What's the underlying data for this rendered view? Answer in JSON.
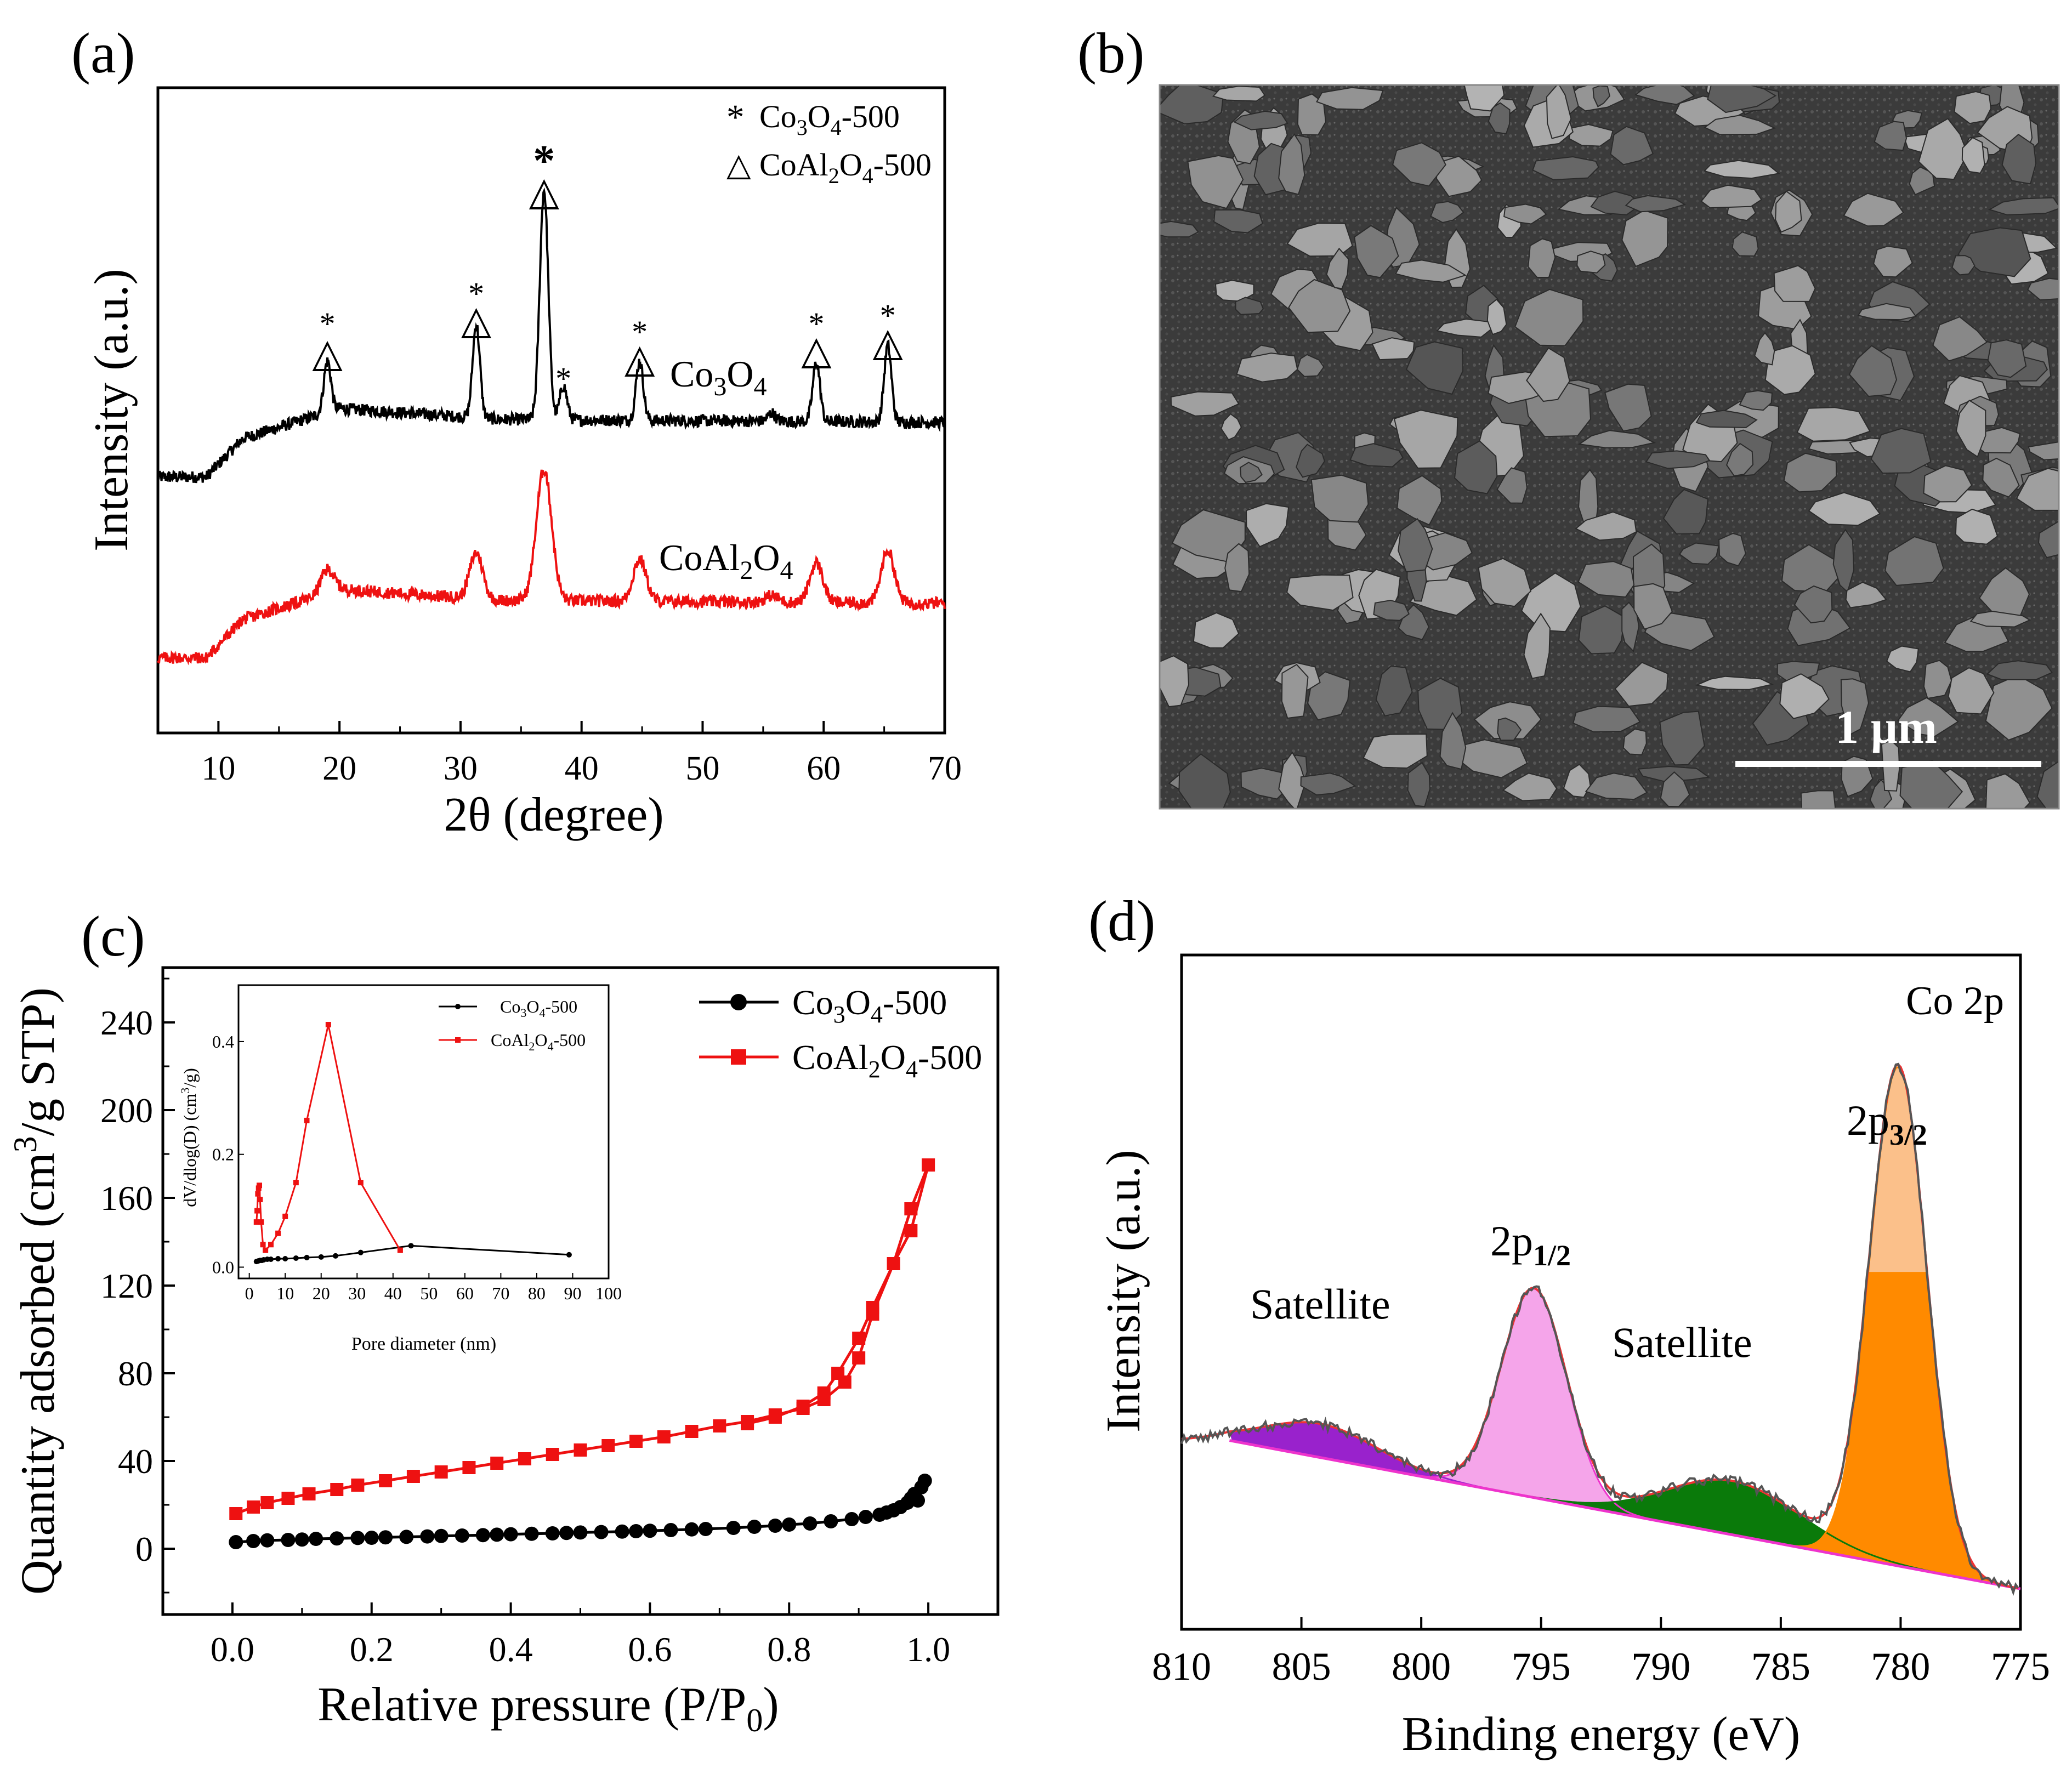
{
  "panels": {
    "a": "(a)",
    "b": "(b)",
    "c": "(c)",
    "d": "(d)"
  },
  "sem": {
    "scale_bar_label": "1 µm"
  },
  "colors": {
    "black_series": "#000000",
    "red_series": "#ee1111",
    "magenta": "#ee33cc",
    "purple": "#9922cc",
    "green": "#0a7a0a",
    "orange": "#ff8a00",
    "peach": "#fbc08a",
    "grey": "#555555"
  },
  "chart_data": [
    {
      "id": "a",
      "type": "line",
      "title": "",
      "xlabel": "2θ (degree)",
      "ylabel": "Intensity (a.u.)",
      "xlim": [
        5,
        70
      ],
      "x_ticks": [
        10,
        20,
        30,
        40,
        50,
        60,
        70
      ],
      "legend": [
        {
          "marker": "*",
          "text": "Co3O4-500"
        },
        {
          "marker": "△",
          "text": "CoAl2O4-500"
        }
      ],
      "series": [
        {
          "name": "Co3O4",
          "color": "#000000",
          "peaks_2theta": [
            19.0,
            31.3,
            36.9,
            38.5,
            44.8,
            55.7,
            59.4,
            65.3
          ]
        },
        {
          "name": "CoAl2O4",
          "color": "#ee1111",
          "peaks_2theta": [
            19.0,
            31.3,
            36.9,
            44.8,
            55.7,
            59.4,
            65.3
          ]
        }
      ],
      "annotations": [
        {
          "x": 19.0,
          "marks": [
            "*",
            "△"
          ]
        },
        {
          "x": 31.3,
          "marks": [
            "*",
            "△"
          ]
        },
        {
          "x": 36.9,
          "marks": [
            "*",
            "△"
          ]
        },
        {
          "x": 38.5,
          "marks": [
            "*"
          ]
        },
        {
          "x": 44.8,
          "marks": [
            "*",
            "△"
          ]
        },
        {
          "x": 59.4,
          "marks": [
            "*",
            "△"
          ]
        },
        {
          "x": 65.3,
          "marks": [
            "*",
            "△"
          ]
        }
      ]
    },
    {
      "id": "c",
      "type": "line",
      "title": "",
      "xlabel": "Relative pressure (P/P0)",
      "ylabel": "Quantity adsorbed (cm3/g STP)",
      "xlim": [
        -0.1,
        1.1
      ],
      "ylim": [
        -30,
        265
      ],
      "x_ticks": [
        0.0,
        0.2,
        0.4,
        0.6,
        0.8,
        1.0
      ],
      "y_ticks": [
        0,
        40,
        80,
        120,
        160,
        200,
        240
      ],
      "legend": [
        "Co3O4-500",
        "CoAl2O4-500"
      ],
      "series": [
        {
          "name": "Co3O4-500",
          "color": "#000000",
          "marker": "circle",
          "x": [
            0.005,
            0.03,
            0.05,
            0.08,
            0.1,
            0.12,
            0.15,
            0.18,
            0.2,
            0.22,
            0.25,
            0.28,
            0.3,
            0.33,
            0.36,
            0.38,
            0.4,
            0.43,
            0.46,
            0.48,
            0.5,
            0.53,
            0.56,
            0.58,
            0.6,
            0.63,
            0.66,
            0.68,
            0.72,
            0.75,
            0.78,
            0.8,
            0.83,
            0.86,
            0.89,
            0.91,
            0.93,
            0.94,
            0.95,
            0.96,
            0.97,
            0.975,
            0.98,
            0.985,
            0.99,
            0.995
          ],
          "y": [
            3,
            3.5,
            3.8,
            4,
            4.2,
            4.5,
            4.7,
            4.9,
            5,
            5.2,
            5.4,
            5.6,
            5.8,
            6,
            6.2,
            6.4,
            6.6,
            6.8,
            7,
            7.2,
            7.4,
            7.6,
            7.8,
            8,
            8.2,
            8.5,
            8.8,
            9,
            9.5,
            10,
            10.5,
            11,
            11.5,
            12.5,
            13.5,
            14.5,
            15.5,
            16.5,
            17.5,
            19,
            21,
            23,
            25,
            22,
            28,
            31
          ]
        },
        {
          "name": "CoAl2O4-500 adsorption",
          "color": "#ee1111",
          "marker": "square",
          "x": [
            0.005,
            0.03,
            0.05,
            0.08,
            0.11,
            0.15,
            0.18,
            0.22,
            0.26,
            0.3,
            0.34,
            0.38,
            0.42,
            0.46,
            0.5,
            0.54,
            0.58,
            0.62,
            0.66,
            0.7,
            0.74,
            0.78,
            0.82,
            0.85,
            0.88,
            0.9,
            0.92,
            0.95,
            0.975,
            1.0
          ],
          "y": [
            16,
            19,
            21,
            23,
            25,
            27,
            29,
            31,
            33,
            35,
            37,
            39,
            41,
            43,
            45,
            47,
            49,
            51,
            53.5,
            56,
            58,
            61,
            64,
            68,
            76,
            87,
            107,
            130,
            155,
            175
          ]
        },
        {
          "name": "CoAl2O4-500 desorption",
          "color": "#ee1111",
          "marker": "square",
          "x": [
            1.0,
            0.975,
            0.95,
            0.92,
            0.9,
            0.87,
            0.85,
            0.82,
            0.78,
            0.74
          ],
          "y": [
            175,
            145,
            130,
            110,
            96,
            80,
            71,
            65,
            60,
            57
          ]
        }
      ],
      "inset": {
        "type": "line",
        "xlabel": "Pore diameter (nm)",
        "ylabel": "dV/dlog(D) (cm3/g)",
        "xlim": [
          -3,
          100
        ],
        "ylim": [
          -0.02,
          0.5
        ],
        "x_ticks": [
          0,
          10,
          20,
          30,
          40,
          50,
          60,
          70,
          80,
          90,
          100
        ],
        "y_ticks": [
          0.0,
          0.2,
          0.4
        ],
        "legend": [
          "Co3O4-500",
          "CoAl2O4-500"
        ],
        "series": [
          {
            "name": "Co3O4-500",
            "color": "#000000",
            "x": [
              2,
              2.5,
              3,
              3.5,
              4,
              5,
              6,
              8,
              10,
              13,
              16,
              20,
              24,
              31,
              45,
              89
            ],
            "y": [
              0.01,
              0.011,
              0.012,
              0.012,
              0.013,
              0.014,
              0.014,
              0.015,
              0.015,
              0.016,
              0.017,
              0.018,
              0.02,
              0.026,
              0.038,
              0.022
            ]
          },
          {
            "name": "CoAl2O4-500",
            "color": "#ee1111",
            "x": [
              2.0,
              2.2,
              2.4,
              2.6,
              2.8,
              3.0,
              3.3,
              3.8,
              4.5,
              6,
              8,
              10,
              13,
              16,
              22,
              31,
              42
            ],
            "y": [
              0.08,
              0.1,
              0.13,
              0.14,
              0.145,
              0.12,
              0.08,
              0.04,
              0.03,
              0.04,
              0.06,
              0.09,
              0.15,
              0.26,
              0.43,
              0.15,
              0.03
            ]
          }
        ]
      }
    },
    {
      "id": "d",
      "type": "line",
      "title": "Co 2p",
      "xlabel": "Binding energy (eV)",
      "ylabel": "Intensity (a.u.)",
      "xlim": [
        810,
        775
      ],
      "x_ticks": [
        810,
        805,
        800,
        795,
        790,
        785,
        780,
        775
      ],
      "annotations": [
        "Satellite",
        "2p1/2",
        "Satellite",
        "2p3/2"
      ],
      "baseline": {
        "x": [
          808,
          775
        ],
        "y": [
          0.28,
          0.06
        ]
      },
      "components": [
        {
          "name": "Satellite (~804 eV)",
          "color": "#9922cc",
          "center": 804.2,
          "height": 0.05,
          "fwhm": 5.5
        },
        {
          "name": "2p1/2",
          "color": "#ee33cc",
          "center": 795.3,
          "height": 0.31,
          "fwhm": 3.2
        },
        {
          "name": "Satellite (~787 eV)",
          "color": "#0a7a0a",
          "center": 787.0,
          "height": 0.08,
          "fwhm": 6.5
        },
        {
          "name": "2p3/2",
          "color": "#ff8a00",
          "center": 780.1,
          "height": 0.74,
          "fwhm": 2.8
        }
      ],
      "raw_spectrum_peaks": [
        {
          "energy": 795.0,
          "intensity": 0.58
        },
        {
          "energy": 779.9,
          "intensity": 0.93
        }
      ]
    }
  ]
}
